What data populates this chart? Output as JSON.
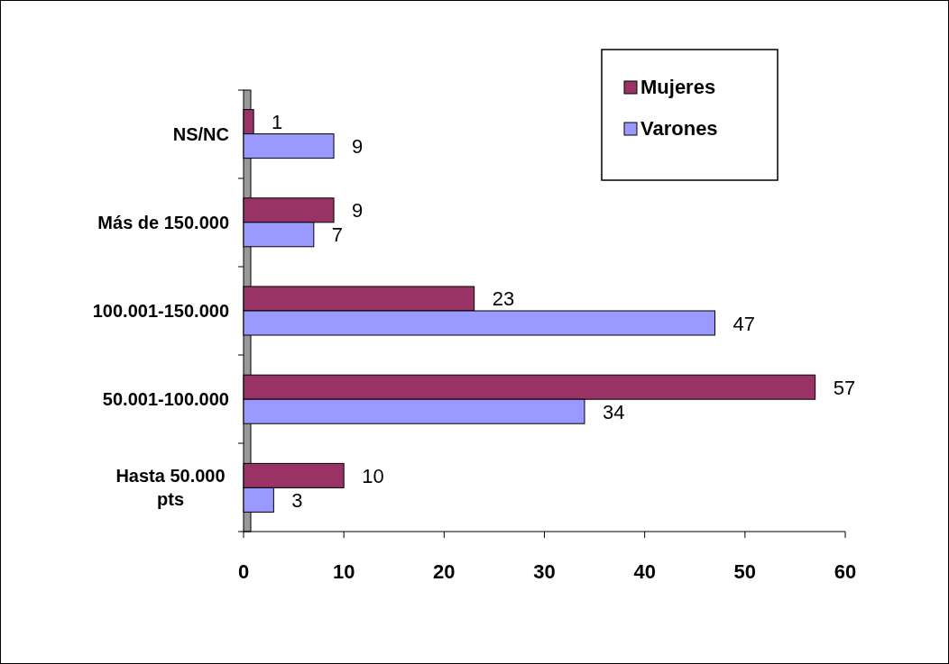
{
  "chart_data": {
    "type": "bar",
    "orientation": "horizontal",
    "categories": [
      "NS/NC",
      "Más de 150.000",
      "100.001-150.000",
      "50.001-100.000",
      "Hasta 50.000 pts"
    ],
    "series": [
      {
        "name": "Mujeres",
        "color": "#993366",
        "values": [
          1,
          9,
          23,
          57,
          10
        ]
      },
      {
        "name": "Varones",
        "color": "#9999ff",
        "values": [
          9,
          7,
          47,
          34,
          3
        ]
      }
    ],
    "xlim": [
      0,
      60
    ],
    "xticks": [
      0,
      10,
      20,
      30,
      40,
      50,
      60
    ],
    "data_labels": true,
    "legend": "top right",
    "grid": false
  }
}
